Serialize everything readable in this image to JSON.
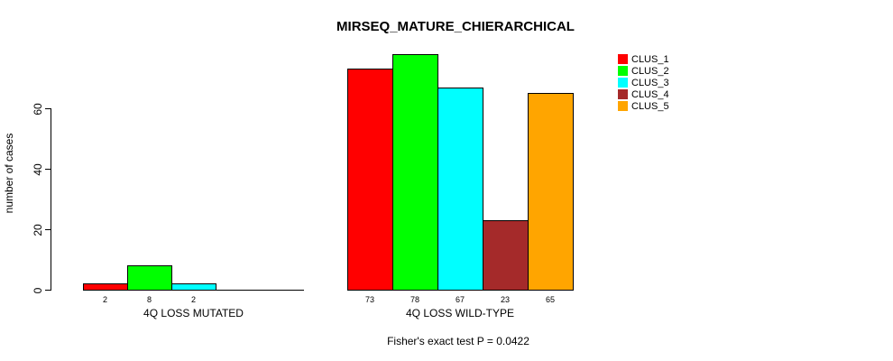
{
  "title": "MIRSEQ_MATURE_CHIERARCHICAL",
  "ylabel": "number of cases",
  "caption": "Fisher's exact test P = 0.0422",
  "legend": [
    {
      "label": "CLUS_1",
      "color": "#FF0000"
    },
    {
      "label": "CLUS_2",
      "color": "#00FF00"
    },
    {
      "label": "CLUS_3",
      "color": "#00FFFF"
    },
    {
      "label": "CLUS_4",
      "color": "#A52A2A"
    },
    {
      "label": "CLUS_5",
      "color": "#FFA500"
    }
  ],
  "chart_data": {
    "type": "bar",
    "title": "MIRSEQ_MATURE_CHIERARCHICAL",
    "ylabel": "number of cases",
    "xlabel": "",
    "ylim": [
      0,
      80
    ],
    "yticks": [
      0,
      20,
      40,
      60
    ],
    "grid": false,
    "legend_position": "top-right",
    "series": [
      "CLUS_1",
      "CLUS_2",
      "CLUS_3",
      "CLUS_4",
      "CLUS_5"
    ],
    "series_colors": [
      "#FF0000",
      "#00FF00",
      "#00FFFF",
      "#A52A2A",
      "#FFA500"
    ],
    "groups": [
      {
        "label": "4Q LOSS MUTATED",
        "values": [
          2,
          8,
          2,
          0,
          0
        ]
      },
      {
        "label": "4Q LOSS WILD-TYPE",
        "values": [
          73,
          78,
          67,
          23,
          65
        ]
      }
    ],
    "annotation": "Fisher's exact test P = 0.0422"
  }
}
